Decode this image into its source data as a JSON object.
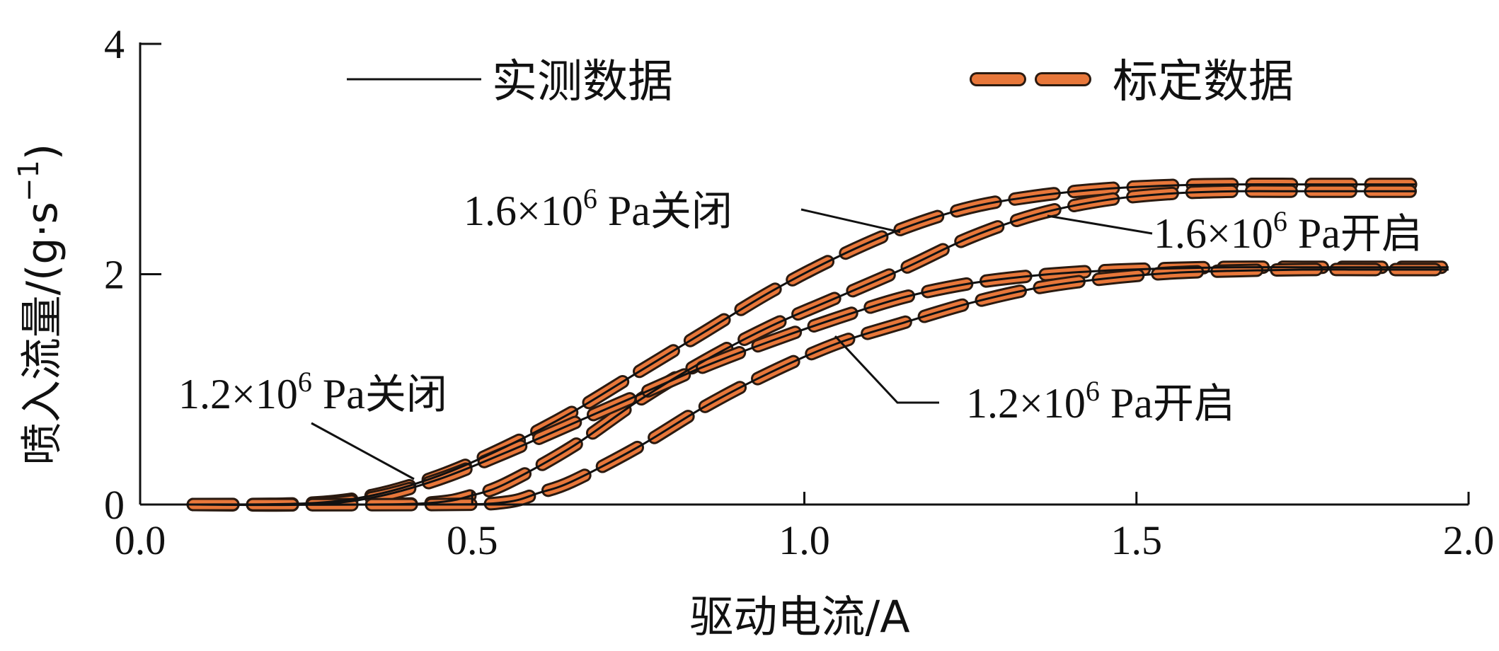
{
  "chart_data": {
    "type": "line",
    "xlabel": "驱动电流/A",
    "ylabel": "喷入流量/(g·s",
    "ylabel_sup": "−1",
    "ylabel_close": ")",
    "xlim": [
      0.0,
      2.0
    ],
    "ylim": [
      0,
      4
    ],
    "x_ticks": [
      "0.0",
      "0.5",
      "1.0",
      "1.5",
      "2.0"
    ],
    "x_tick_values": [
      0.0,
      0.5,
      1.0,
      1.5,
      2.0
    ],
    "y_ticks": [
      "0",
      "2",
      "4"
    ],
    "y_tick_values": [
      0,
      2,
      4
    ],
    "grid": false,
    "legend": {
      "placement": "top",
      "items": [
        {
          "label": "实测数据",
          "style": "solid",
          "color": "#111111"
        },
        {
          "label": "标定数据",
          "style": "dashed",
          "color": "#e8773a"
        }
      ]
    },
    "colors": {
      "measured": "#111111",
      "calibrated": "#e8773a",
      "calibrated_outline": "#2a1a10"
    },
    "curves": [
      {
        "id": "c16_close",
        "x": [
          0.08,
          0.25,
          0.35,
          0.45,
          0.55,
          0.65,
          0.75,
          0.85,
          0.95,
          1.05,
          1.15,
          1.25,
          1.35,
          1.45,
          1.55,
          1.65,
          1.75,
          1.85,
          1.92
        ],
        "y": [
          0.0,
          0.01,
          0.08,
          0.25,
          0.5,
          0.8,
          1.15,
          1.5,
          1.85,
          2.15,
          2.4,
          2.58,
          2.68,
          2.74,
          2.77,
          2.78,
          2.78,
          2.78,
          2.78
        ]
      },
      {
        "id": "c16_open",
        "x": [
          0.08,
          0.35,
          0.45,
          0.5,
          0.55,
          0.65,
          0.75,
          0.85,
          0.95,
          1.05,
          1.15,
          1.25,
          1.35,
          1.45,
          1.55,
          1.65,
          1.75,
          1.85,
          1.92
        ],
        "y": [
          0.0,
          0.0,
          0.02,
          0.08,
          0.18,
          0.5,
          0.9,
          1.25,
          1.55,
          1.8,
          2.05,
          2.32,
          2.52,
          2.64,
          2.7,
          2.72,
          2.72,
          2.72,
          2.72
        ]
      },
      {
        "id": "c12_close",
        "x": [
          0.08,
          0.25,
          0.35,
          0.45,
          0.55,
          0.65,
          0.75,
          0.85,
          0.95,
          1.05,
          1.15,
          1.25,
          1.35,
          1.45,
          1.55,
          1.65,
          1.75,
          1.85,
          1.97
        ],
        "y": [
          0.0,
          0.0,
          0.06,
          0.22,
          0.45,
          0.7,
          0.95,
          1.2,
          1.42,
          1.62,
          1.8,
          1.92,
          1.99,
          2.03,
          2.05,
          2.06,
          2.06,
          2.06,
          2.06
        ]
      },
      {
        "id": "c12_open",
        "x": [
          0.08,
          0.45,
          0.55,
          0.6,
          0.65,
          0.75,
          0.85,
          0.95,
          1.05,
          1.15,
          1.25,
          1.35,
          1.45,
          1.55,
          1.65,
          1.75,
          1.85,
          1.97
        ],
        "y": [
          0.0,
          0.0,
          0.02,
          0.1,
          0.2,
          0.5,
          0.85,
          1.15,
          1.4,
          1.58,
          1.75,
          1.88,
          1.96,
          2.01,
          2.03,
          2.04,
          2.04,
          2.04
        ]
      }
    ],
    "annotations": [
      {
        "target": "c16_close",
        "mantissa": "1.6×10",
        "exp": "6",
        "suffix": " Pa",
        "cjk": "关闭"
      },
      {
        "target": "c16_open",
        "mantissa": "1.6×10",
        "exp": "6",
        "suffix": " Pa",
        "cjk": "开启"
      },
      {
        "target": "c12_close",
        "mantissa": "1.2×10",
        "exp": "6",
        "suffix": " Pa",
        "cjk": "关闭"
      },
      {
        "target": "c12_open",
        "mantissa": "1.2×10",
        "exp": "6",
        "suffix": " Pa",
        "cjk": "开启"
      }
    ]
  }
}
